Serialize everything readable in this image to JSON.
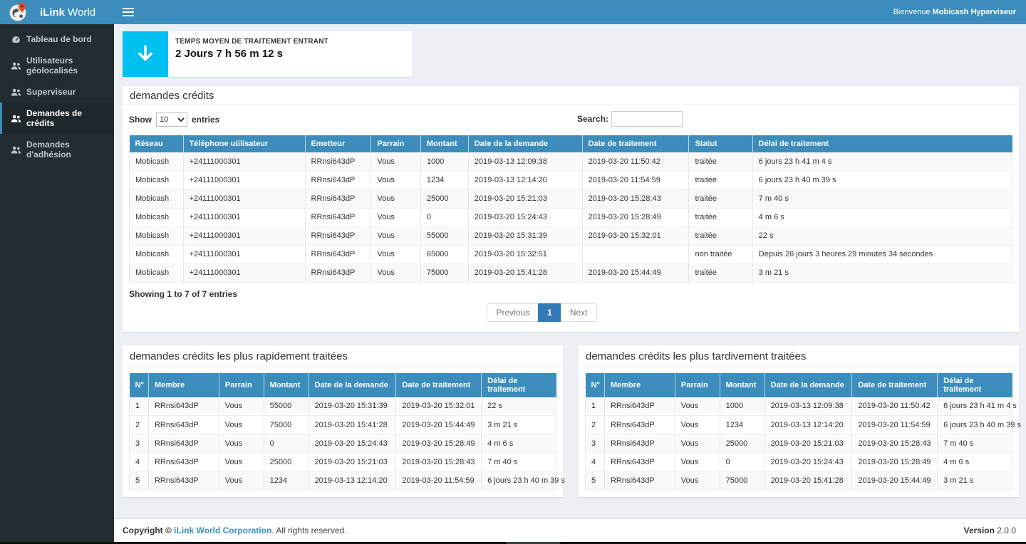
{
  "app": {
    "brand_bold": "iLink",
    "brand_regular": " World",
    "welcome_prefix": "Bienvenue ",
    "welcome_user": "Mobicash Hyperviseur"
  },
  "sidebar": {
    "items": [
      {
        "label": "Tableau de bord",
        "icon": "dashboard-icon",
        "active": false
      },
      {
        "label": "Utilisateurs géolocalisés",
        "icon": "users-icon",
        "active": false
      },
      {
        "label": "Superviseur",
        "icon": "users-icon",
        "active": false
      },
      {
        "label": "Demandes de crédits",
        "icon": "users-icon",
        "active": true
      },
      {
        "label": "Demandes d'adhésion",
        "icon": "users-icon",
        "active": false
      }
    ]
  },
  "stat_card": {
    "title": "TEMPS MOYEN DE TRAITEMENT ENTRANT",
    "value": "2 Jours 7 h 56 m 12 s",
    "icon": "arrow-down-icon",
    "icon_color": "#00c0ef"
  },
  "credits_panel": {
    "title": "demandes crédits",
    "show_label": "Show",
    "page_size": "10",
    "entries_label": "entries",
    "search_label": "Search:",
    "search_value": "",
    "columns": [
      "Réseau",
      "Téléphone utilisateur",
      "Emetteur",
      "Parrain",
      "Montant",
      "Date de la demande",
      "Date de traitement",
      "Statut",
      "Délai de traitement"
    ],
    "rows": [
      [
        "Mobicash",
        "+24111000301",
        "RRnsi643dP",
        "Vous",
        "1000",
        "2019-03-13 12:09:38",
        "2019-03-20 11:50:42",
        "traitée",
        "6 jours 23 h 41 m 4 s"
      ],
      [
        "Mobicash",
        "+24111000301",
        "RRnsi643dP",
        "Vous",
        "1234",
        "2019-03-13 12:14:20",
        "2019-03-20 11:54:59",
        "traitée",
        "6 jours 23 h 40 m 39 s"
      ],
      [
        "Mobicash",
        "+24111000301",
        "RRnsi643dP",
        "Vous",
        "25000",
        "2019-03-20 15:21:03",
        "2019-03-20 15:28:43",
        "traitée",
        "7 m 40 s"
      ],
      [
        "Mobicash",
        "+24111000301",
        "RRnsi643dP",
        "Vous",
        "0",
        "2019-03-20 15:24:43",
        "2019-03-20 15:28:49",
        "traitée",
        "4 m 6 s"
      ],
      [
        "Mobicash",
        "+24111000301",
        "RRnsi643dP",
        "Vous",
        "55000",
        "2019-03-20 15:31:39",
        "2019-03-20 15:32:01",
        "traitée",
        "22 s"
      ],
      [
        "Mobicash",
        "+24111000301",
        "RRnsi643dP",
        "Vous",
        "65000",
        "2019-03-20 15:32:51",
        "",
        "non traitée",
        "Depuis 26 jours 3 heures 29 minutes 34 secondes"
      ],
      [
        "Mobicash",
        "+24111000301",
        "RRnsi643dP",
        "Vous",
        "75000",
        "2019-03-20 15:41:28",
        "2019-03-20 15:44:49",
        "traitée",
        "3 m 21 s"
      ]
    ],
    "info": "Showing 1 to 7 of 7 entries",
    "pagination": {
      "previous": "Previous",
      "current": "1",
      "next": "Next"
    }
  },
  "fastest_panel": {
    "title": "demandes crédits les plus rapidement traitées",
    "columns": [
      "N°",
      "Membre",
      "Parrain",
      "Montant",
      "Date de la demande",
      "Date de traitement",
      "Délai de traitement"
    ],
    "rows": [
      [
        "1",
        "RRnsi643dP",
        "Vous",
        "55000",
        "2019-03-20 15:31:39",
        "2019-03-20 15:32:01",
        "22 s"
      ],
      [
        "2",
        "RRnsi643dP",
        "Vous",
        "75000",
        "2019-03-20 15:41:28",
        "2019-03-20 15:44:49",
        "3 m 21 s"
      ],
      [
        "3",
        "RRnsi643dP",
        "Vous",
        "0",
        "2019-03-20 15:24:43",
        "2019-03-20 15:28:49",
        "4 m 6 s"
      ],
      [
        "4",
        "RRnsi643dP",
        "Vous",
        "25000",
        "2019-03-20 15:21:03",
        "2019-03-20 15:28:43",
        "7 m 40 s"
      ],
      [
        "5",
        "RRnsi643dP",
        "Vous",
        "1234",
        "2019-03-13 12:14:20",
        "2019-03-20 11:54:59",
        "6 jours 23 h 40 m 39 s"
      ]
    ]
  },
  "slowest_panel": {
    "title": "demandes crédits les plus tardivement traitées",
    "columns": [
      "N°",
      "Membre",
      "Parrain",
      "Montant",
      "Date de la demande",
      "Date de traitement",
      "Délai de traitement"
    ],
    "rows": [
      [
        "1",
        "RRnsi643dP",
        "Vous",
        "1000",
        "2019-03-13 12:09:38",
        "2019-03-20 11:50:42",
        "6 jours 23 h 41 m 4 s"
      ],
      [
        "2",
        "RRnsi643dP",
        "Vous",
        "1234",
        "2019-03-13 12:14:20",
        "2019-03-20 11:54:59",
        "6 jours 23 h 40 m 39 s"
      ],
      [
        "3",
        "RRnsi643dP",
        "Vous",
        "25000",
        "2019-03-20 15:21:03",
        "2019-03-20 15:28:43",
        "7 m 40 s"
      ],
      [
        "4",
        "RRnsi643dP",
        "Vous",
        "0",
        "2019-03-20 15:24:43",
        "2019-03-20 15:28:49",
        "4 m 6 s"
      ],
      [
        "5",
        "RRnsi643dP",
        "Vous",
        "75000",
        "2019-03-20 15:41:28",
        "2019-03-20 15:44:49",
        "3 m 21 s"
      ]
    ]
  },
  "footer": {
    "copyright_bold": "Copyright © ",
    "company": "iLink World Corporation",
    "rights": ". All rights reserved.",
    "version_label": "Version ",
    "version_value": "2.0.0"
  },
  "colors": {
    "navbar_blue": "#3c8dbc",
    "sidebar_dark": "#222d32",
    "table_header_blue": "#3c8dbc",
    "info_box_cyan": "#00c0ef",
    "pagination_active_blue": "#337ab7",
    "content_background": "#ecf0f5"
  }
}
